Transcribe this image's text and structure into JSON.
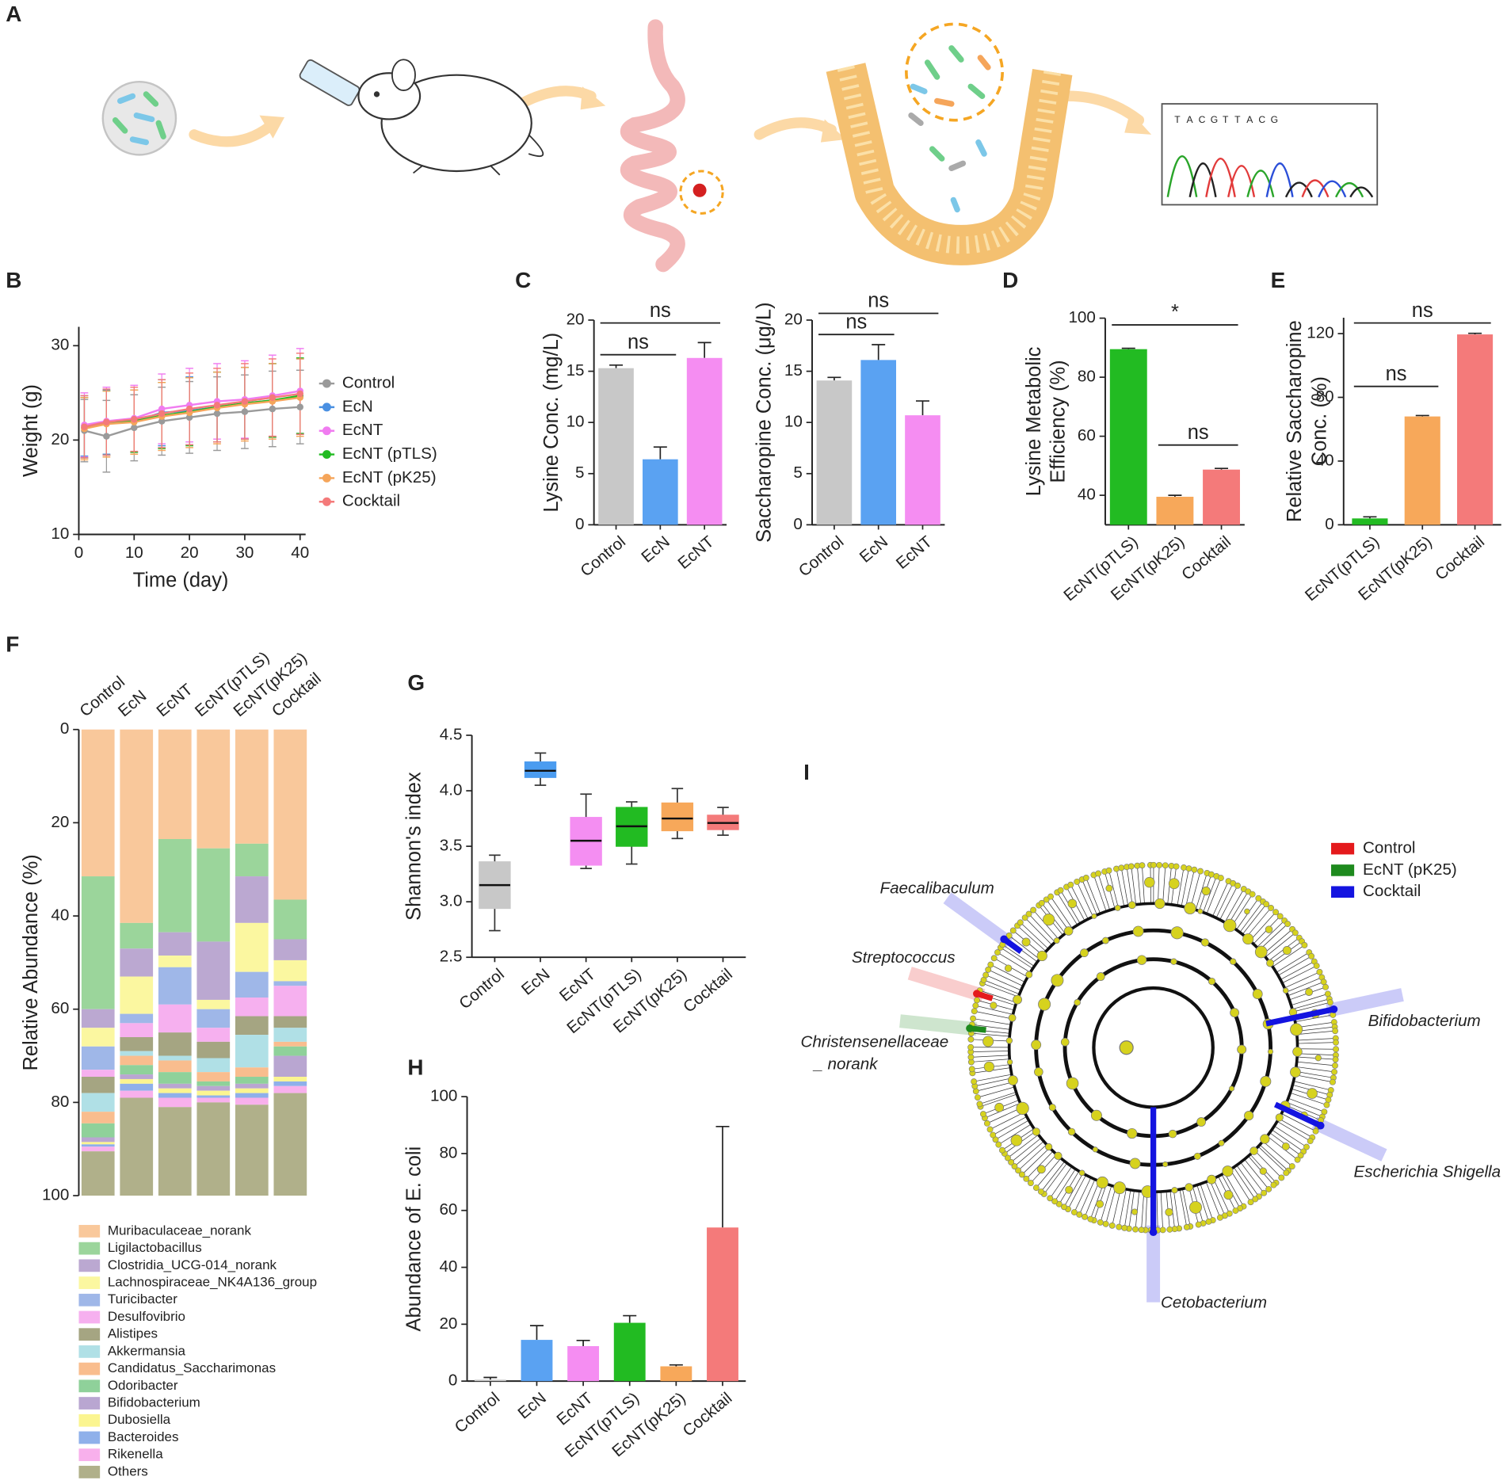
{
  "panel_labels": [
    "A",
    "B",
    "C",
    "D",
    "E",
    "F",
    "G",
    "H",
    "I"
  ],
  "sequence": [
    {
      "base": "T",
      "color": "#e23b3b"
    },
    {
      "base": "A",
      "color": "#2aa52a"
    },
    {
      "base": "C",
      "color": "#2b4fd8"
    },
    {
      "base": "G",
      "color": "#222222"
    },
    {
      "base": "T",
      "color": "#e23b3b"
    },
    {
      "base": "T",
      "color": "#e23b3b"
    },
    {
      "base": "A",
      "color": "#2aa52a"
    },
    {
      "base": "C",
      "color": "#2b4fd8"
    },
    {
      "base": "G",
      "color": "#222222"
    }
  ],
  "chart_data": [
    {
      "type": "line",
      "x_label": "Time (day)",
      "y_label": "Weight (g)",
      "x": [
        1,
        5,
        10,
        15,
        20,
        25,
        30,
        35,
        40
      ],
      "xlim": [
        0,
        41
      ],
      "xticks": [
        0,
        10,
        20,
        30,
        40
      ],
      "ylim": [
        10,
        32
      ],
      "yticks": [
        10,
        20,
        30
      ],
      "series": [
        {
          "name": "Control",
          "color": "#9a9a9a",
          "values": [
            21.0,
            20.4,
            21.3,
            22.0,
            22.4,
            22.8,
            23.0,
            23.3,
            23.5
          ],
          "errors": [
            3.3,
            3.8,
            3.5,
            3.6,
            3.8,
            3.9,
            3.9,
            4.0,
            3.9
          ]
        },
        {
          "name": "EcN",
          "color": "#4a90e2",
          "values": [
            21.5,
            21.9,
            22.0,
            22.9,
            23.1,
            23.5,
            23.9,
            24.2,
            24.6
          ],
          "errors": [
            3.2,
            3.4,
            3.3,
            3.5,
            3.6,
            3.7,
            3.8,
            3.9,
            4.0
          ]
        },
        {
          "name": "EcNT",
          "color": "#f07cf0",
          "values": [
            21.6,
            22.0,
            22.3,
            23.3,
            23.7,
            24.1,
            24.3,
            24.7,
            25.2
          ],
          "errors": [
            3.4,
            3.6,
            3.5,
            3.7,
            3.9,
            4.0,
            4.1,
            4.3,
            4.5
          ]
        },
        {
          "name": "EcNT (pTLS)",
          "color": "#22bb22",
          "values": [
            21.3,
            21.8,
            22.0,
            22.6,
            23.0,
            23.5,
            23.9,
            24.2,
            24.7
          ],
          "errors": [
            3.2,
            3.4,
            3.3,
            3.5,
            3.6,
            3.7,
            3.8,
            3.9,
            4.0
          ]
        },
        {
          "name": "EcNT (pK25)",
          "color": "#f5a55a",
          "values": [
            21.2,
            21.7,
            21.9,
            22.5,
            22.9,
            23.4,
            23.8,
            24.1,
            24.5
          ],
          "errors": [
            3.3,
            3.5,
            3.4,
            3.6,
            3.7,
            3.8,
            3.9,
            4.0,
            4.1
          ]
        },
        {
          "name": "Cocktail",
          "color": "#f47a7a",
          "values": [
            21.4,
            21.9,
            22.2,
            22.8,
            23.3,
            23.7,
            24.1,
            24.5,
            24.9
          ],
          "errors": [
            3.3,
            3.5,
            3.4,
            3.6,
            3.8,
            3.9,
            4.0,
            4.1,
            4.3
          ]
        }
      ]
    },
    {
      "type": "bar",
      "y_label": "Lysine Conc. (mg/L)",
      "categories": [
        "Control",
        "EcN",
        "EcNT"
      ],
      "values": [
        15.3,
        6.4,
        16.3
      ],
      "errors": [
        0.3,
        1.2,
        1.5
      ],
      "colors": [
        "#c8c8c8",
        "#5aa2f2",
        "#f58df2"
      ],
      "ylim": [
        0,
        20
      ],
      "yticks": [
        0,
        5,
        10,
        15,
        20
      ],
      "annotations": [
        {
          "label": "ns",
          "groups": [
            "Control",
            "EcN"
          ]
        },
        {
          "label": "ns",
          "groups": [
            "Control",
            "EcNT"
          ]
        }
      ]
    },
    {
      "type": "bar",
      "y_label": "Saccharopine Conc. (μg/L)",
      "categories": [
        "Control",
        "EcN",
        "EcNT"
      ],
      "values": [
        14.1,
        16.1,
        10.7
      ],
      "errors": [
        0.3,
        1.5,
        1.4
      ],
      "colors": [
        "#c8c8c8",
        "#5aa2f2",
        "#f58df2"
      ],
      "ylim": [
        0,
        20
      ],
      "yticks": [
        0,
        5,
        10,
        15,
        20
      ],
      "annotations": [
        {
          "label": "ns",
          "groups": [
            "Control",
            "EcN"
          ]
        },
        {
          "label": "ns",
          "groups": [
            "Control",
            "EcNT"
          ]
        }
      ]
    },
    {
      "type": "bar",
      "y_label": [
        "Lysine Metabolic",
        "Efficiency (%)"
      ],
      "categories": [
        "EcNT(pTLS)",
        "EcNT(pK25)",
        "Cocktail"
      ],
      "values": [
        89.5,
        39.5,
        48.7
      ],
      "errors": [
        0.3,
        0.5,
        0.4
      ],
      "colors": [
        "#22bb22",
        "#f7a85a",
        "#f47a7a"
      ],
      "ylim": [
        30,
        100
      ],
      "yticks": [
        40,
        60,
        80,
        100
      ],
      "annotations": [
        {
          "label": "*",
          "groups": [
            "EcNT(pTLS)",
            "Cocktail"
          ]
        },
        {
          "label": "ns",
          "groups": [
            "EcNT(pK25)",
            "Cocktail"
          ]
        }
      ]
    },
    {
      "type": "bar",
      "y_label": [
        "Relative Saccharopine",
        "Conc. (%)"
      ],
      "categories": [
        "EcNT(pTLS)",
        "EcNT(pK25)",
        "Cocktail"
      ],
      "values": [
        4,
        68,
        119.5
      ],
      "errors": [
        1,
        0.6,
        0.7
      ],
      "colors": [
        "#22bb22",
        "#f7a85a",
        "#f47a7a"
      ],
      "ylim": [
        0,
        130
      ],
      "yticks": [
        0,
        40,
        80,
        120
      ],
      "annotations": [
        {
          "label": "ns",
          "groups": [
            "EcNT(pTLS)",
            "EcNT(pK25)"
          ]
        },
        {
          "label": "ns",
          "groups": [
            "EcNT(pTLS)",
            "Cocktail"
          ]
        }
      ]
    },
    {
      "type": "stacked_bar",
      "y_label": "Relative Abundance (%)",
      "yreverse": true,
      "categories": [
        "Control",
        "EcN",
        "EcNT",
        "EcNT(pTLS)",
        "EcNT(pK25)",
        "Cocktail"
      ],
      "ylim": [
        0,
        100
      ],
      "yticks": [
        0,
        20,
        40,
        60,
        80,
        100
      ],
      "series": [
        {
          "name": "Muribaculaceae_norank",
          "color": "#f9c89b",
          "values": [
            31.5,
            41.5,
            23.5,
            25.5,
            24.5,
            36.5
          ]
        },
        {
          "name": "Ligilactobacillus",
          "color": "#9bd59b",
          "values": [
            28.5,
            5.5,
            20,
            20,
            7,
            8.5
          ]
        },
        {
          "name": "Clostridia_UCG-014_norank",
          "color": "#bba8d1",
          "values": [
            4,
            6,
            5,
            12.5,
            10,
            4.5
          ]
        },
        {
          "name": "Lachnospiraceae_NK4A136_group",
          "color": "#fbf7a0",
          "values": [
            4,
            8,
            2.5,
            2,
            10.5,
            4.5
          ]
        },
        {
          "name": "Turicibacter",
          "color": "#9fb7e8",
          "values": [
            5,
            2,
            8,
            4,
            5.5,
            1
          ]
        },
        {
          "name": "Desulfovibrio",
          "color": "#f6b0ef",
          "values": [
            1.5,
            3,
            6,
            3,
            4,
            6.5
          ]
        },
        {
          "name": "Alistipes",
          "color": "#a5a582",
          "values": [
            3.5,
            3,
            5,
            3.5,
            4,
            2.5
          ]
        },
        {
          "name": "Akkermansia",
          "color": "#b0e0e6",
          "values": [
            4,
            1,
            1,
            3,
            7,
            3
          ]
        },
        {
          "name": "Candidatus_Saccharimonas",
          "color": "#f9bd8e",
          "values": [
            2.5,
            2,
            2.5,
            2,
            2,
            1
          ]
        },
        {
          "name": "Odoribacter",
          "color": "#8fd19a",
          "values": [
            3,
            2,
            2.5,
            1,
            1.5,
            2
          ]
        },
        {
          "name": "Bifidobacterium",
          "color": "#b9a6d1",
          "values": [
            1,
            1,
            1,
            1,
            1,
            4.5
          ]
        },
        {
          "name": "Dubosiella",
          "color": "#fbf590",
          "values": [
            0.5,
            1,
            1,
            1,
            1,
            1
          ]
        },
        {
          "name": "Bacteroides",
          "color": "#8fb0ea",
          "values": [
            0.5,
            1.5,
            1,
            0.5,
            1,
            1
          ]
        },
        {
          "name": "Rikenella",
          "color": "#f8b0ec",
          "values": [
            1,
            1.5,
            2,
            1,
            1.5,
            1.5
          ]
        },
        {
          "name": "Others",
          "color": "#b0b08a",
          "values": [
            9.5,
            21,
            19,
            20,
            19.5,
            22
          ]
        }
      ]
    },
    {
      "type": "box",
      "y_label": "Shannon's index",
      "categories": [
        "Control",
        "EcN",
        "EcNT",
        "EcNT(pTLS)",
        "EcNT(pK25)",
        "Cocktail"
      ],
      "colors": [
        "#c8c8c8",
        "#4b9cf0",
        "#f48ef2",
        "#22bb22",
        "#f7a85a",
        "#f47a7a"
      ],
      "boxes": [
        {
          "min": 2.74,
          "q1": 2.94,
          "median": 3.15,
          "q3": 3.36,
          "max": 3.42
        },
        {
          "min": 4.05,
          "q1": 4.12,
          "median": 4.18,
          "q3": 4.26,
          "max": 4.34
        },
        {
          "min": 3.3,
          "q1": 3.33,
          "median": 3.55,
          "q3": 3.76,
          "max": 3.97
        },
        {
          "min": 3.34,
          "q1": 3.5,
          "median": 3.68,
          "q3": 3.85,
          "max": 3.9
        },
        {
          "min": 3.57,
          "q1": 3.64,
          "median": 3.75,
          "q3": 3.89,
          "max": 4.02
        },
        {
          "min": 3.6,
          "q1": 3.65,
          "median": 3.71,
          "q3": 3.78,
          "max": 3.85
        }
      ],
      "ylim": [
        2.5,
        4.5
      ],
      "yticks": [
        2.5,
        {
          "value": 3,
          "label": "3.0"
        },
        3.5,
        {
          "value": 4,
          "label": "4.0"
        },
        4.5
      ]
    },
    {
      "type": "bar",
      "y_label": "Abundance of E. coli",
      "categories": [
        "Control",
        "EcN",
        "EcNT",
        "EcNT(pTLS)",
        "EcNT(pK25)",
        "Cocktail"
      ],
      "values": [
        0.5,
        14.5,
        12.3,
        20.5,
        5.2,
        54
      ],
      "errors": [
        0.8,
        5,
        2,
        2.5,
        0.5,
        35.5
      ],
      "colors": [
        "#c8c8c8",
        "#5aa2f2",
        "#f58df2",
        "#22bb22",
        "#f7a85a",
        "#f47a7a"
      ],
      "ylim": [
        0,
        100
      ],
      "yticks": [
        0,
        20,
        40,
        60,
        80,
        100
      ]
    }
  ],
  "cladogram": {
    "legend": [
      {
        "name": "Control",
        "color": "#e41a1c"
      },
      {
        "name": "EcNT (pK25)",
        "color": "#1e8a1e"
      },
      {
        "name": "Cocktail",
        "color": "#1414e0"
      }
    ],
    "taxa": [
      {
        "lines": [
          "Faecalibaculum"
        ],
        "color": "#1414e0"
      },
      {
        "lines": [
          "Streptococcus"
        ],
        "color": "#e41a1c"
      },
      {
        "lines": [
          "Christensenellaceae",
          "_ norank"
        ],
        "color": "#1e8a1e"
      },
      {
        "lines": [
          "Bifidobacterium"
        ],
        "color": "#1414e0"
      },
      {
        "lines": [
          "Escherichia Shigella"
        ],
        "color": "#1414e0"
      },
      {
        "lines": [
          "Cetobacterium"
        ],
        "color": "#1414e0"
      }
    ]
  }
}
